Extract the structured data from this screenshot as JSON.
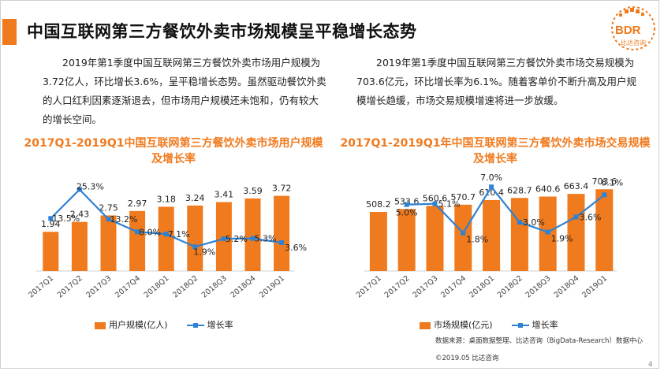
{
  "page": {
    "title": "中国互联网第三方餐饮外卖市场规模呈平稳增长态势",
    "logo_text": "BDR",
    "logo_sub": "比达咨询",
    "para_left": "2019年第1季度中国互联网第三方餐饮外卖市场用户规模为3.72亿人，环比增长3.6%，呈平稳增长态势。虽然驱动餐饮外卖的人口红利因素逐渐退去，但市场用户规模还未饱和，仍有较大的增长空间。",
    "para_right": "2019年第1季度中国互联网第三方餐饮外卖市场交易规模为703.6亿元，环比增长率为6.1%。随着客单价不断升高及用户规模增长趋缓，市场交易规模增速将进一步放缓。",
    "source": "数据来源：桌面数据整理、比达咨询（BigData-Research）数据中心",
    "copyright": "©2019.05 比达咨询",
    "page_number": "4",
    "colors": {
      "accent": "#f07a1e",
      "line": "#2f82d3"
    }
  },
  "chart_data": [
    {
      "type": "bar",
      "title": "2017Q1-2019Q1中国互联网第三方餐饮外卖市场用户规模及增长率",
      "categories": [
        "2017Q1",
        "2017Q2",
        "2017Q3",
        "2017Q4",
        "2018Q1",
        "2018Q2",
        "2018Q3",
        "2018Q4",
        "2019Q1"
      ],
      "series": [
        {
          "name": "用户规模(亿人)",
          "type": "bar",
          "values": [
            1.94,
            2.43,
            2.75,
            2.97,
            3.18,
            3.24,
            3.41,
            3.59,
            3.72
          ],
          "labels": [
            "1.94",
            "2.43",
            "2.75",
            "2.97",
            "3.18",
            "3.24",
            "3.41",
            "3.59",
            "3.72"
          ]
        },
        {
          "name": "增长率",
          "type": "line",
          "values": [
            13.5,
            25.3,
            13.2,
            8.0,
            7.1,
            1.9,
            5.2,
            5.3,
            3.6
          ],
          "labels": [
            "13.5%",
            "25.3%",
            "13.2%",
            "8.0%",
            "7.1%",
            "1.9%",
            "5.2%",
            "5.3%",
            "3.6%"
          ]
        }
      ],
      "ylim_bar": [
        0,
        4.6
      ],
      "ylim_line": [
        -8,
        30
      ]
    },
    {
      "type": "bar",
      "title": "2017Q1-2019Q1年中国互联网第三方餐饮外卖市场交易规模及增长率",
      "categories": [
        "2017Q1",
        "2017Q2",
        "2017Q3",
        "2017Q4",
        "2018Q1",
        "2018Q2",
        "2018Q3",
        "2018Q4",
        "2019Q1"
      ],
      "series": [
        {
          "name": "市场规模(亿元)",
          "type": "bar",
          "values": [
            508.2,
            533.6,
            560.6,
            570.7,
            610.4,
            628.7,
            640.6,
            663.4,
            703.6
          ],
          "labels": [
            "508.2",
            "533.6",
            "560.6",
            "570.7",
            "610.4",
            "628.7",
            "640.6",
            "663.4",
            "703.6"
          ]
        },
        {
          "name": "增长率",
          "type": "line",
          "values": [
            null,
            5.0,
            5.1,
            1.8,
            7.0,
            3.0,
            1.9,
            3.6,
            6.1
          ],
          "labels": [
            "",
            "5.0%",
            "5.1%",
            "1.8%",
            "7.0%",
            "3.0%",
            "1.9%",
            "3.6%",
            "6.1%"
          ]
        }
      ],
      "ylim_bar": [
        0,
        800
      ],
      "ylim_line": [
        -2.5,
        8
      ]
    }
  ]
}
